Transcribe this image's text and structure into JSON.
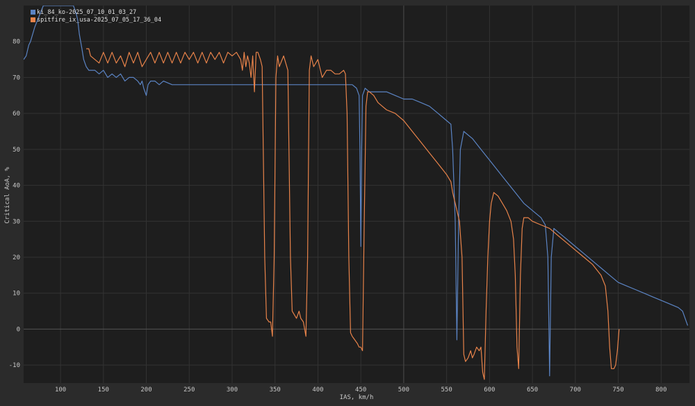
{
  "chart_data": {
    "type": "line",
    "xlabel": "IAS, km/h",
    "ylabel": "Critical AoA, %",
    "xlim": [
      57,
      833
    ],
    "ylim": [
      -15,
      90
    ],
    "xticks": [
      100,
      150,
      200,
      250,
      300,
      350,
      400,
      450,
      500,
      550,
      600,
      650,
      700,
      750,
      800
    ],
    "yticks": [
      -10,
      0,
      10,
      20,
      30,
      40,
      50,
      60,
      70,
      80
    ],
    "grid": true,
    "legend_position": "top-left",
    "background": "#1e1e1e",
    "grid_color": "#333333",
    "zero_line_color": "#555555",
    "cursor_line_x": 500,
    "series": [
      {
        "name": "ki_84_ko-2025_07_10_01_03_27",
        "color": "#5b84c4",
        "points": [
          [
            57,
            75
          ],
          [
            60,
            76
          ],
          [
            63,
            79
          ],
          [
            65,
            80
          ],
          [
            70,
            84
          ],
          [
            75,
            87
          ],
          [
            80,
            90
          ],
          [
            100,
            90
          ],
          [
            115,
            90
          ],
          [
            118,
            88
          ],
          [
            120,
            86
          ],
          [
            122,
            82
          ],
          [
            125,
            78
          ],
          [
            127,
            75
          ],
          [
            130,
            73
          ],
          [
            133,
            72
          ],
          [
            140,
            72
          ],
          [
            145,
            71
          ],
          [
            150,
            72
          ],
          [
            155,
            70
          ],
          [
            160,
            71
          ],
          [
            165,
            70
          ],
          [
            170,
            71
          ],
          [
            175,
            69
          ],
          [
            180,
            70
          ],
          [
            185,
            70
          ],
          [
            190,
            69
          ],
          [
            193,
            68
          ],
          [
            195,
            69
          ],
          [
            197,
            67
          ],
          [
            200,
            65
          ],
          [
            202,
            68
          ],
          [
            205,
            69
          ],
          [
            210,
            69
          ],
          [
            215,
            68
          ],
          [
            220,
            69
          ],
          [
            230,
            68
          ],
          [
            240,
            68
          ],
          [
            250,
            68
          ],
          [
            260,
            68
          ],
          [
            270,
            68
          ],
          [
            280,
            68
          ],
          [
            290,
            68
          ],
          [
            300,
            68
          ],
          [
            310,
            68
          ],
          [
            320,
            68
          ],
          [
            330,
            68
          ],
          [
            340,
            68
          ],
          [
            350,
            68
          ],
          [
            360,
            68
          ],
          [
            370,
            68
          ],
          [
            380,
            68
          ],
          [
            390,
            68
          ],
          [
            400,
            68
          ],
          [
            420,
            68
          ],
          [
            440,
            68
          ],
          [
            445,
            67
          ],
          [
            448,
            65
          ],
          [
            449,
            50
          ],
          [
            450,
            23
          ],
          [
            451,
            50
          ],
          [
            452,
            65
          ],
          [
            455,
            67
          ],
          [
            460,
            66
          ],
          [
            470,
            66
          ],
          [
            480,
            66
          ],
          [
            490,
            65
          ],
          [
            500,
            64
          ],
          [
            510,
            64
          ],
          [
            520,
            63
          ],
          [
            530,
            62
          ],
          [
            540,
            60
          ],
          [
            550,
            58
          ],
          [
            555,
            57
          ],
          [
            557,
            50
          ],
          [
            560,
            30
          ],
          [
            562,
            -3
          ],
          [
            564,
            30
          ],
          [
            566,
            50
          ],
          [
            570,
            55
          ],
          [
            580,
            53
          ],
          [
            590,
            50
          ],
          [
            600,
            47
          ],
          [
            610,
            44
          ],
          [
            620,
            41
          ],
          [
            630,
            38
          ],
          [
            640,
            35
          ],
          [
            650,
            33
          ],
          [
            660,
            31
          ],
          [
            665,
            29
          ],
          [
            668,
            20
          ],
          [
            670,
            -13
          ],
          [
            672,
            20
          ],
          [
            675,
            28
          ],
          [
            680,
            27
          ],
          [
            690,
            25
          ],
          [
            700,
            23
          ],
          [
            710,
            21
          ],
          [
            720,
            19
          ],
          [
            730,
            17
          ],
          [
            740,
            15
          ],
          [
            750,
            13
          ],
          [
            760,
            12
          ],
          [
            770,
            11
          ],
          [
            780,
            10
          ],
          [
            790,
            9
          ],
          [
            800,
            8
          ],
          [
            810,
            7
          ],
          [
            820,
            6
          ],
          [
            825,
            5
          ],
          [
            828,
            3
          ],
          [
            831,
            1
          ]
        ]
      },
      {
        "name": "spitfire_ix_usa-2025_07_05_17_36_04",
        "color": "#e8834a",
        "points": [
          [
            130,
            78
          ],
          [
            133,
            78
          ],
          [
            135,
            76
          ],
          [
            140,
            75
          ],
          [
            145,
            74
          ],
          [
            150,
            77
          ],
          [
            155,
            74
          ],
          [
            160,
            77
          ],
          [
            165,
            74
          ],
          [
            170,
            76
          ],
          [
            175,
            73
          ],
          [
            180,
            77
          ],
          [
            185,
            74
          ],
          [
            190,
            77
          ],
          [
            195,
            73
          ],
          [
            200,
            75
          ],
          [
            205,
            77
          ],
          [
            210,
            74
          ],
          [
            215,
            77
          ],
          [
            220,
            74
          ],
          [
            225,
            77
          ],
          [
            230,
            74
          ],
          [
            235,
            77
          ],
          [
            240,
            74
          ],
          [
            245,
            77
          ],
          [
            250,
            75
          ],
          [
            255,
            77
          ],
          [
            260,
            74
          ],
          [
            265,
            77
          ],
          [
            270,
            74
          ],
          [
            275,
            77
          ],
          [
            280,
            75
          ],
          [
            285,
            77
          ],
          [
            290,
            74
          ],
          [
            295,
            77
          ],
          [
            300,
            76
          ],
          [
            305,
            77
          ],
          [
            310,
            75
          ],
          [
            312,
            72
          ],
          [
            314,
            77
          ],
          [
            316,
            73
          ],
          [
            318,
            76
          ],
          [
            320,
            74
          ],
          [
            322,
            70
          ],
          [
            324,
            76
          ],
          [
            326,
            66
          ],
          [
            328,
            77
          ],
          [
            330,
            77
          ],
          [
            333,
            75
          ],
          [
            335,
            73
          ],
          [
            338,
            20
          ],
          [
            340,
            3
          ],
          [
            343,
            2
          ],
          [
            345,
            2
          ],
          [
            347,
            -2
          ],
          [
            349,
            20
          ],
          [
            351,
            70
          ],
          [
            353,
            76
          ],
          [
            355,
            73
          ],
          [
            360,
            76
          ],
          [
            365,
            72
          ],
          [
            368,
            20
          ],
          [
            370,
            5
          ],
          [
            375,
            3
          ],
          [
            378,
            5
          ],
          [
            380,
            3
          ],
          [
            383,
            2
          ],
          [
            386,
            -2
          ],
          [
            388,
            20
          ],
          [
            390,
            72
          ],
          [
            392,
            76
          ],
          [
            395,
            73
          ],
          [
            400,
            75
          ],
          [
            405,
            70
          ],
          [
            410,
            72
          ],
          [
            415,
            72
          ],
          [
            420,
            71
          ],
          [
            425,
            71
          ],
          [
            430,
            72
          ],
          [
            432,
            71
          ],
          [
            434,
            60
          ],
          [
            436,
            20
          ],
          [
            438,
            -1
          ],
          [
            440,
            -2
          ],
          [
            443,
            -3
          ],
          [
            446,
            -4
          ],
          [
            448,
            -5
          ],
          [
            450,
            -5
          ],
          [
            452,
            -6
          ],
          [
            454,
            30
          ],
          [
            456,
            62
          ],
          [
            458,
            66
          ],
          [
            460,
            66
          ],
          [
            465,
            65
          ],
          [
            470,
            63
          ],
          [
            475,
            62
          ],
          [
            480,
            61
          ],
          [
            490,
            60
          ],
          [
            500,
            58
          ],
          [
            510,
            55
          ],
          [
            520,
            52
          ],
          [
            530,
            49
          ],
          [
            540,
            46
          ],
          [
            550,
            43
          ],
          [
            555,
            41
          ],
          [
            557,
            38
          ],
          [
            560,
            35
          ],
          [
            565,
            30
          ],
          [
            568,
            20
          ],
          [
            570,
            -7
          ],
          [
            572,
            -9
          ],
          [
            575,
            -8
          ],
          [
            578,
            -6
          ],
          [
            580,
            -8
          ],
          [
            582,
            -7
          ],
          [
            585,
            -5
          ],
          [
            588,
            -6
          ],
          [
            590,
            -5
          ],
          [
            592,
            -12
          ],
          [
            594,
            -14
          ],
          [
            596,
            5
          ],
          [
            598,
            20
          ],
          [
            600,
            30
          ],
          [
            602,
            35
          ],
          [
            605,
            38
          ],
          [
            610,
            37
          ],
          [
            615,
            35
          ],
          [
            620,
            33
          ],
          [
            625,
            30
          ],
          [
            628,
            25
          ],
          [
            630,
            15
          ],
          [
            632,
            -5
          ],
          [
            634,
            -11
          ],
          [
            636,
            15
          ],
          [
            638,
            28
          ],
          [
            640,
            31
          ],
          [
            645,
            31
          ],
          [
            650,
            30
          ],
          [
            660,
            29
          ],
          [
            670,
            28
          ],
          [
            680,
            26
          ],
          [
            690,
            24
          ],
          [
            700,
            22
          ],
          [
            710,
            20
          ],
          [
            720,
            18
          ],
          [
            730,
            15
          ],
          [
            735,
            12
          ],
          [
            738,
            5
          ],
          [
            740,
            -5
          ],
          [
            742,
            -11
          ],
          [
            745,
            -11
          ],
          [
            747,
            -10
          ],
          [
            749,
            -6
          ],
          [
            751,
            0
          ]
        ]
      }
    ]
  }
}
